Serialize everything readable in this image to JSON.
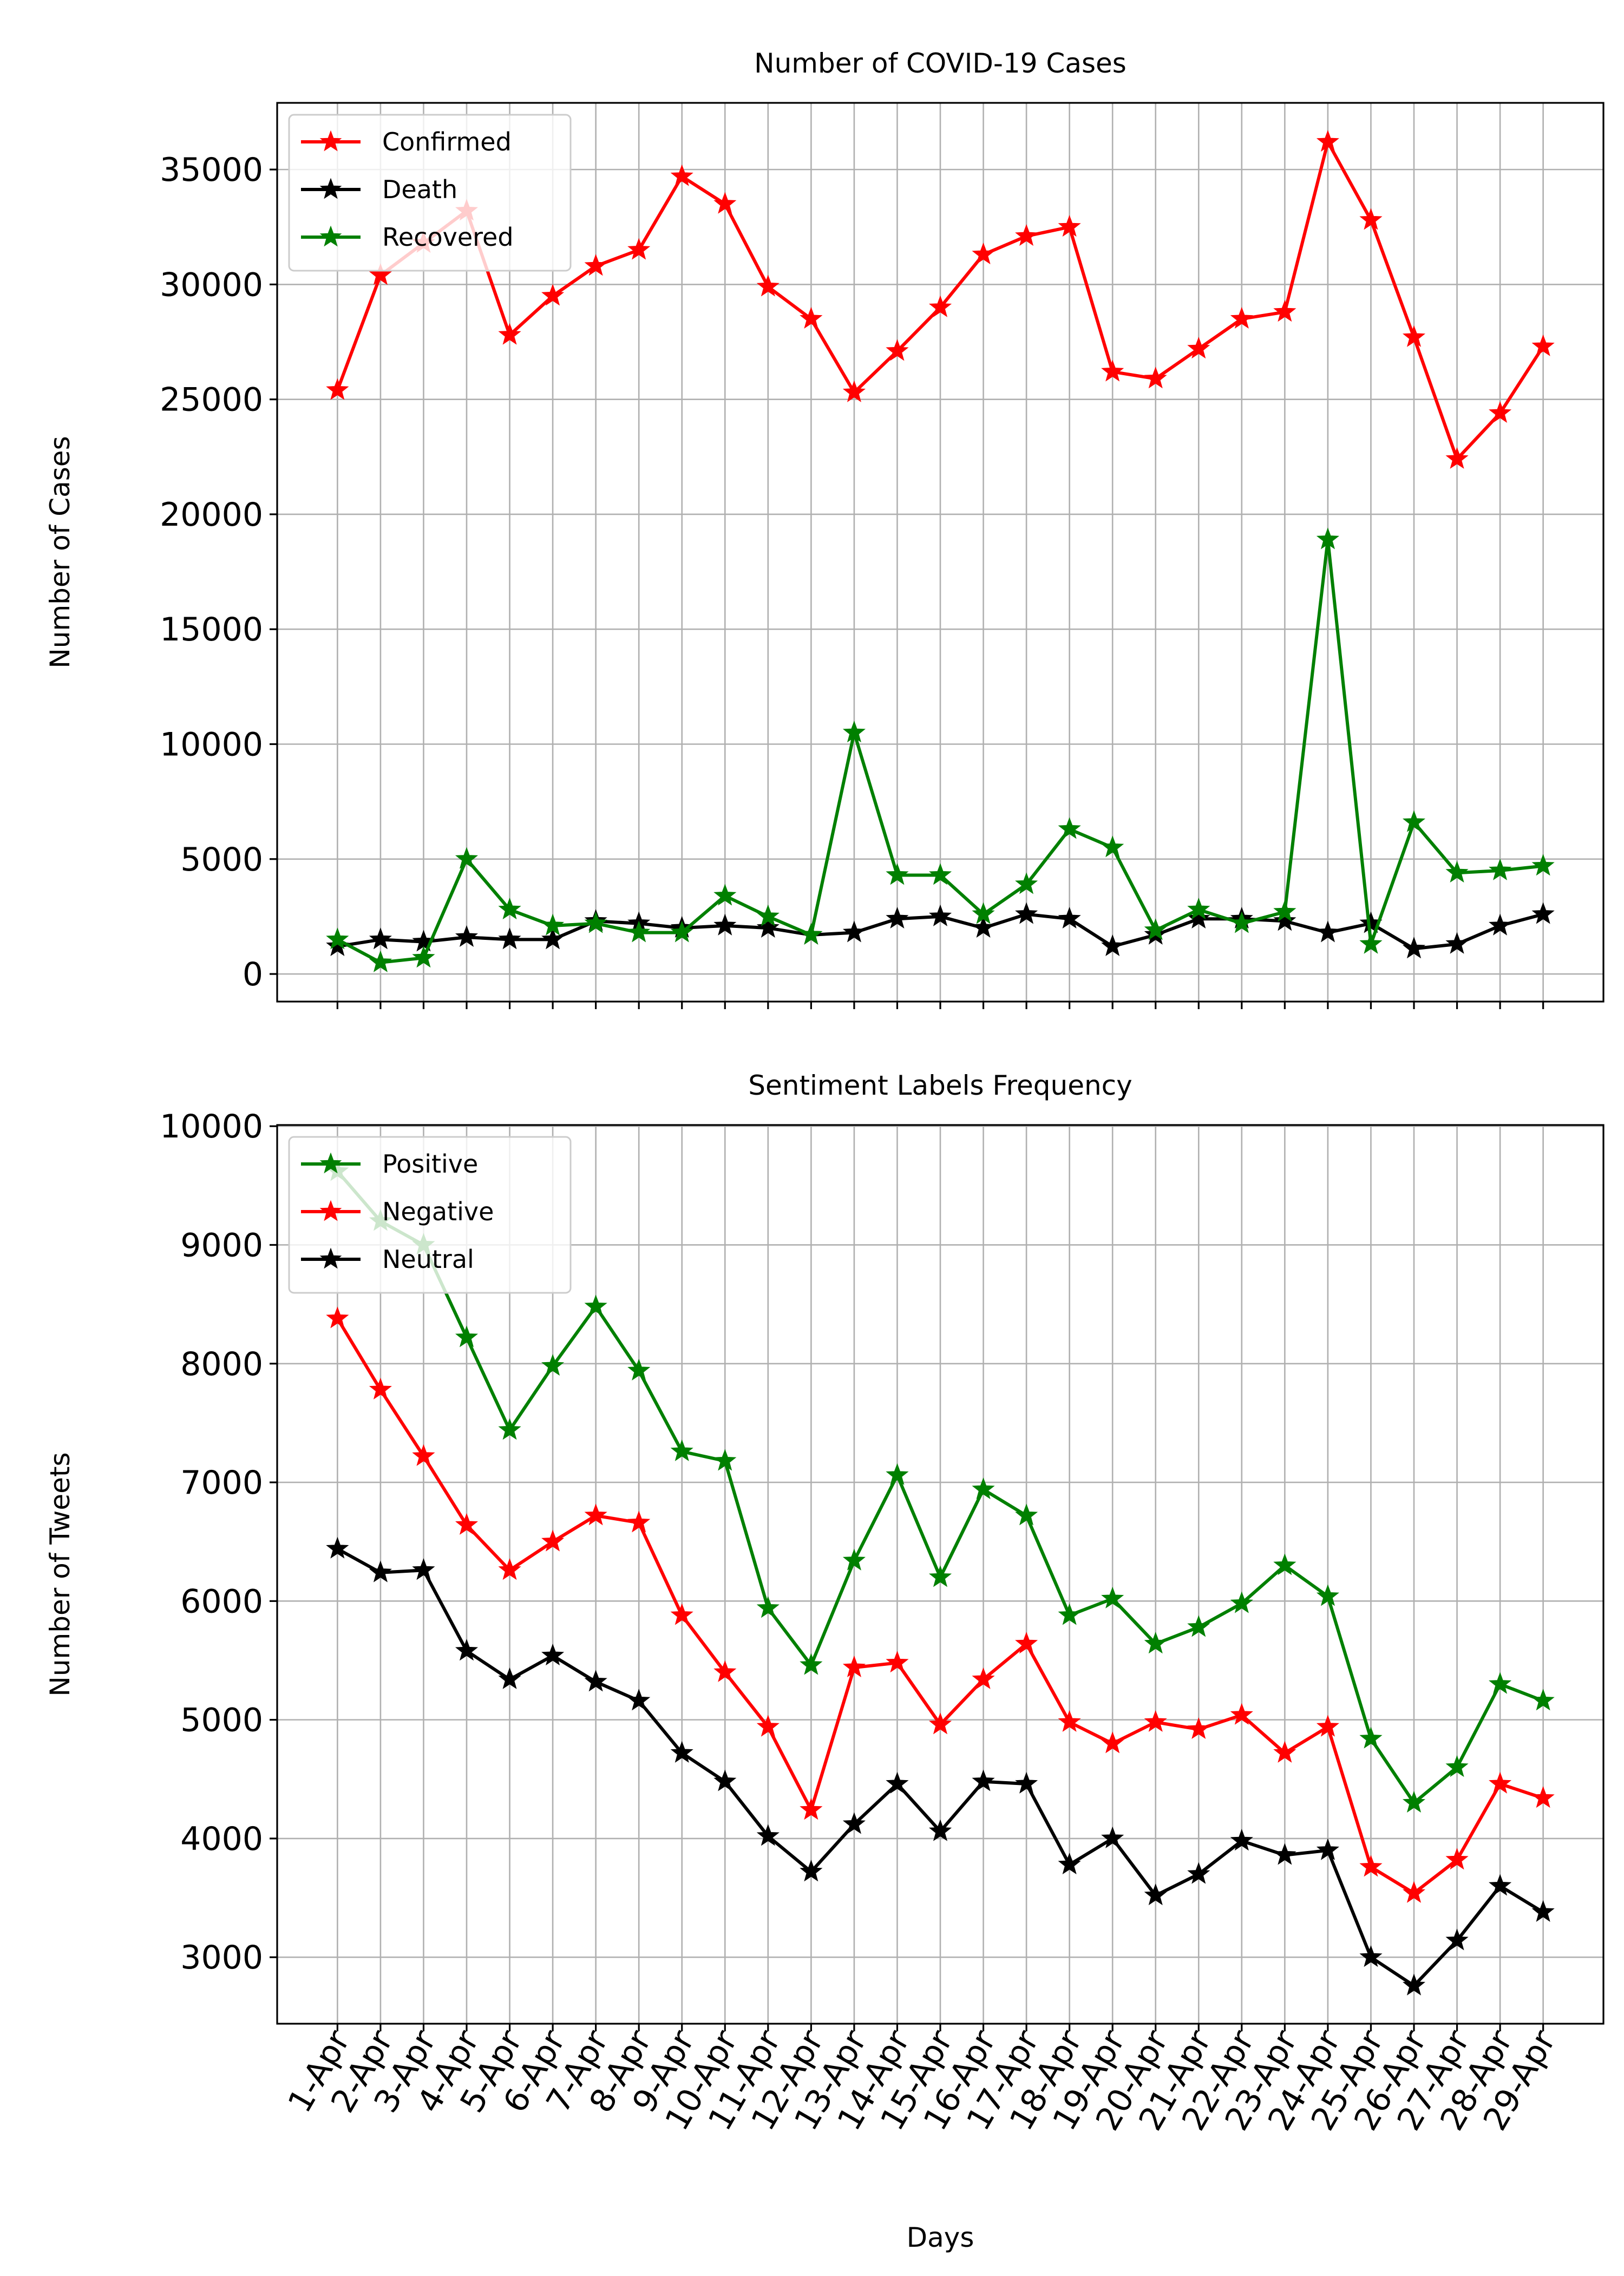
{
  "chart_data": [
    {
      "type": "line",
      "title": "Number of COVID-19 Cases",
      "xlabel": "",
      "ylabel": "Number of Cases",
      "x": [
        "1-Apr",
        "2-Apr",
        "3-Apr",
        "4-Apr",
        "5-Apr",
        "6-Apr",
        "7-Apr",
        "8-Apr",
        "9-Apr",
        "10-Apr",
        "11-Apr",
        "12-Apr",
        "13-Apr",
        "14-Apr",
        "15-Apr",
        "16-Apr",
        "17-Apr",
        "18-Apr",
        "19-Apr",
        "20-Apr",
        "21-Apr",
        "22-Apr",
        "23-Apr",
        "24-Apr",
        "25-Apr",
        "26-Apr",
        "27-Apr",
        "28-Apr",
        "29-Apr"
      ],
      "xticklabels_visible": false,
      "ylim": [
        -1200,
        37900
      ],
      "yticks": [
        0,
        5000,
        10000,
        15000,
        20000,
        25000,
        30000,
        35000
      ],
      "ytick_labels": [
        "0",
        "5000",
        "10000",
        "15000",
        "20000",
        "25000",
        "30000",
        "35000"
      ],
      "grid": true,
      "legend": "top-left",
      "marker": "star",
      "series": [
        {
          "name": "Confirmed",
          "color": "#ff0000",
          "values": [
            25400,
            30400,
            31800,
            33200,
            27800,
            29500,
            30800,
            31500,
            34700,
            33500,
            29900,
            28500,
            25300,
            27100,
            29000,
            31300,
            32100,
            32500,
            26200,
            25900,
            27200,
            28500,
            28800,
            36200,
            32800,
            27700,
            22400,
            24400,
            27300
          ]
        },
        {
          "name": "Death",
          "color": "#000000",
          "values": [
            1200,
            1500,
            1400,
            1600,
            1500,
            1500,
            2300,
            2200,
            2000,
            2100,
            2000,
            1700,
            1800,
            2400,
            2500,
            2000,
            2600,
            2400,
            1200,
            1700,
            2400,
            2400,
            2300,
            1800,
            2200,
            1100,
            1300,
            2100,
            2600
          ]
        },
        {
          "name": "Recovered",
          "color": "#008000",
          "values": [
            1500,
            500,
            700,
            5000,
            2800,
            2100,
            2200,
            1800,
            1800,
            3400,
            2500,
            1700,
            10500,
            4300,
            4300,
            2600,
            3900,
            6300,
            5500,
            1900,
            2800,
            2200,
            2700,
            18900,
            1300,
            6600,
            4400,
            4500,
            4700
          ]
        }
      ]
    },
    {
      "type": "line",
      "title": "Sentiment Labels Frequency",
      "xlabel": "Days",
      "ylabel": "Number of Tweets",
      "x": [
        "1-Apr",
        "2-Apr",
        "3-Apr",
        "4-Apr",
        "5-Apr",
        "6-Apr",
        "7-Apr",
        "8-Apr",
        "9-Apr",
        "10-Apr",
        "11-Apr",
        "12-Apr",
        "13-Apr",
        "14-Apr",
        "15-Apr",
        "16-Apr",
        "17-Apr",
        "18-Apr",
        "19-Apr",
        "20-Apr",
        "21-Apr",
        "22-Apr",
        "23-Apr",
        "24-Apr",
        "25-Apr",
        "26-Apr",
        "27-Apr",
        "28-Apr",
        "29-Apr"
      ],
      "ylim": [
        2440,
        10010
      ],
      "yticks": [
        3000,
        4000,
        5000,
        6000,
        7000,
        8000,
        9000,
        10000
      ],
      "ytick_labels": [
        "3000",
        "4000",
        "5000",
        "6000",
        "7000",
        "8000",
        "9000",
        "10000"
      ],
      "grid": true,
      "legend": "top-left",
      "marker": "star",
      "series": [
        {
          "name": "Positive",
          "color": "#008000",
          "values": [
            9620,
            9200,
            9000,
            8220,
            7440,
            7980,
            8480,
            7940,
            7260,
            7180,
            5940,
            5460,
            6340,
            7060,
            6200,
            6940,
            6720,
            5880,
            6020,
            5640,
            5780,
            5980,
            6300,
            6040,
            4840,
            4300,
            4600,
            5300,
            5160
          ]
        },
        {
          "name": "Negative",
          "color": "#ff0000",
          "values": [
            8380,
            7780,
            7220,
            6640,
            6260,
            6500,
            6720,
            6660,
            5880,
            5400,
            4940,
            4240,
            5440,
            5480,
            4960,
            5340,
            5640,
            4980,
            4800,
            4980,
            4920,
            5040,
            4720,
            4940,
            3760,
            3540,
            3820,
            4460,
            4340
          ]
        },
        {
          "name": "Neutral",
          "color": "#000000",
          "values": [
            6440,
            6240,
            6260,
            5580,
            5340,
            5540,
            5320,
            5160,
            4720,
            4480,
            4020,
            3720,
            4120,
            4460,
            4060,
            4480,
            4460,
            3780,
            4000,
            3520,
            3700,
            3980,
            3860,
            3900,
            3000,
            2760,
            3140,
            3600,
            3380
          ]
        }
      ]
    }
  ]
}
